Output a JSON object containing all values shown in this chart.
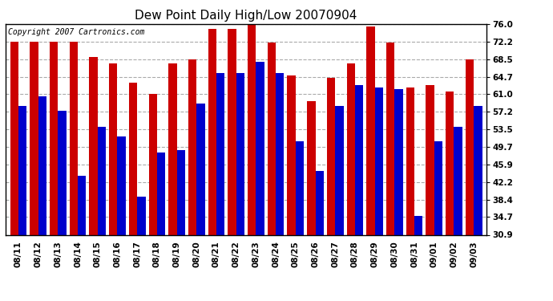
{
  "title": "Dew Point Daily High/Low 20070904",
  "copyright": "Copyright 2007 Cartronics.com",
  "dates": [
    "08/11",
    "08/12",
    "08/13",
    "08/14",
    "08/15",
    "08/16",
    "08/17",
    "08/18",
    "08/19",
    "08/20",
    "08/21",
    "08/22",
    "08/23",
    "08/24",
    "08/25",
    "08/26",
    "08/27",
    "08/28",
    "08/29",
    "08/30",
    "08/31",
    "09/01",
    "09/02",
    "09/03"
  ],
  "highs": [
    72.2,
    72.2,
    72.2,
    72.2,
    69.0,
    67.5,
    63.5,
    61.0,
    67.5,
    68.5,
    75.0,
    75.0,
    76.0,
    72.0,
    65.0,
    59.5,
    64.5,
    67.5,
    75.5,
    72.0,
    62.5,
    63.0,
    61.5,
    68.5
  ],
  "lows": [
    58.5,
    60.5,
    57.5,
    43.5,
    54.0,
    52.0,
    39.0,
    48.5,
    49.0,
    59.0,
    65.5,
    65.5,
    68.0,
    65.5,
    51.0,
    44.5,
    58.5,
    63.0,
    62.5,
    62.0,
    35.0,
    51.0,
    54.0,
    58.5
  ],
  "high_color": "#cc0000",
  "low_color": "#0000cc",
  "yticks": [
    30.9,
    34.7,
    38.4,
    42.2,
    45.9,
    49.7,
    53.5,
    57.2,
    61.0,
    64.7,
    68.5,
    72.2,
    76.0
  ],
  "ymin": 30.9,
  "ymax": 76.0,
  "bg_color": "#ffffff",
  "plot_bg_color": "#ffffff",
  "grid_color": "#aaaaaa",
  "bar_width": 0.42,
  "title_fontsize": 11,
  "tick_fontsize": 7.5,
  "copyright_fontsize": 7
}
